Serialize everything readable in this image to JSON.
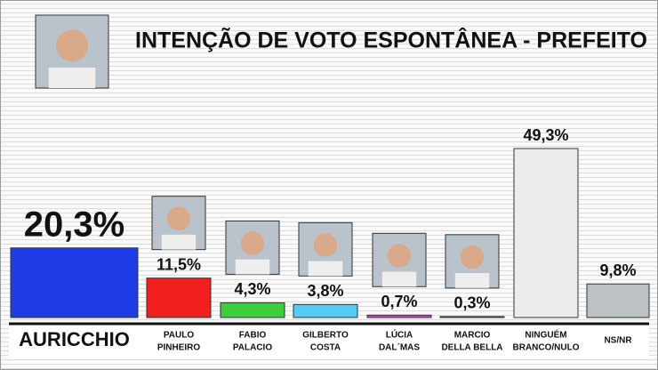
{
  "chart_data": {
    "type": "bar",
    "title": "INTENÇÃO DE VOTO ESPONTÂNEA - PREFEITO",
    "categories": [
      [
        "AURICCHIO"
      ],
      [
        "PAULO",
        "PINHEIRO"
      ],
      [
        "FABIO",
        "PALACIO"
      ],
      [
        "GILBERTO",
        "COSTA"
      ],
      [
        "LÚCIA",
        "DAL´MAS"
      ],
      [
        "MARCIO",
        "DELLA BELLA"
      ],
      [
        "NINGUÉM",
        "BRANCO/NULO"
      ],
      [
        "NS/NR"
      ]
    ],
    "values": [
      20.3,
      11.5,
      4.3,
      3.8,
      0.7,
      0.3,
      49.3,
      9.8
    ],
    "value_labels": [
      "20,3%",
      "11,5%",
      "4,3%",
      "3,8%",
      "0,7%",
      "0,3%",
      "49,3%",
      "9,8%"
    ],
    "colors": [
      "#1e3ce6",
      "#f21f1f",
      "#3ccf3c",
      "#55ccf5",
      "#e635d6",
      "#c8703a",
      "#ececec",
      "#bcc2c4"
    ]
  }
}
